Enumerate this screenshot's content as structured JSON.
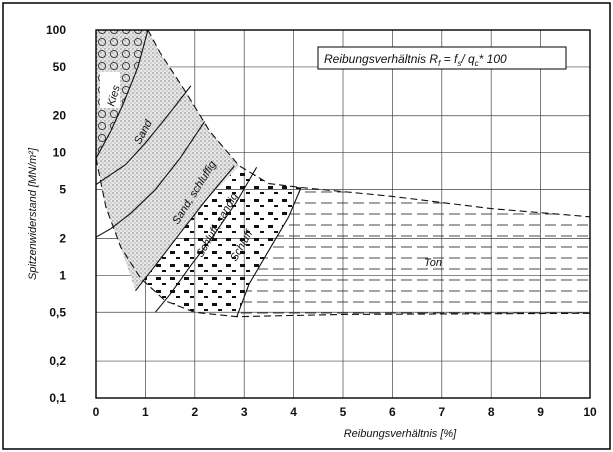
{
  "diagram": {
    "annotation": "Reibungsverhältnis Rf = fs/ qc* 100",
    "annotation_parts": {
      "prefix": "Reibungsverhältnis R",
      "sub1": "f",
      "mid": " = f",
      "sub2": "s",
      "mid2": "/ q",
      "sub3": "c",
      "suffix": "* 100"
    },
    "x_axis": {
      "label": "Reibungsverhältnis [%]",
      "range": [
        0,
        10
      ],
      "ticks": [
        "0",
        "1",
        "2",
        "3",
        "4",
        "5",
        "6",
        "7",
        "8",
        "9",
        "10"
      ]
    },
    "y_axis": {
      "label": "Spitzenwiderstand [MN/m²]",
      "scale": "log",
      "range": [
        0.1,
        100
      ],
      "ticks": [
        "100",
        "50",
        "20",
        "10",
        "5",
        "2",
        "1",
        "0,5",
        "0,2",
        "0,1"
      ]
    },
    "zones": [
      {
        "label": "Kies",
        "pattern": "circles"
      },
      {
        "label": "Sand",
        "pattern": "dots"
      },
      {
        "label": "Sand, schluffig",
        "pattern": "dots"
      },
      {
        "label": "Schluff, sandig",
        "pattern": "blocks"
      },
      {
        "label": "Schluff",
        "pattern": "blocks"
      },
      {
        "label": "Ton",
        "pattern": "dashes"
      }
    ]
  }
}
